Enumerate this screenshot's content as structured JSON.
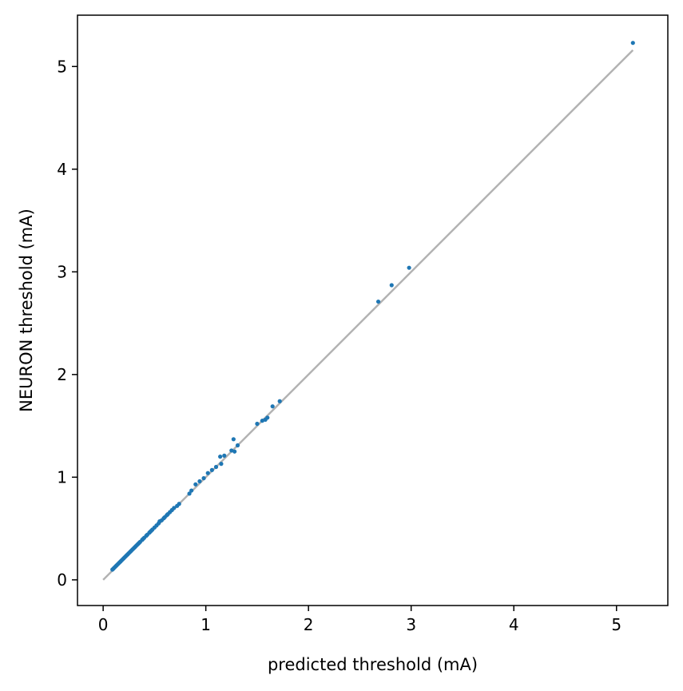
{
  "chart_data": {
    "type": "scatter",
    "title": "",
    "xlabel": "predicted threshold (mA)",
    "ylabel": "NEURON threshold (mA)",
    "xlim": [
      -0.25,
      5.5
    ],
    "ylim": [
      -0.25,
      5.5
    ],
    "xticks": [
      0,
      1,
      2,
      3,
      4,
      5
    ],
    "yticks": [
      0,
      1,
      2,
      3,
      4,
      5
    ],
    "xtick_labels": [
      "0",
      "1",
      "2",
      "3",
      "4",
      "5"
    ],
    "ytick_labels": [
      "0",
      "1",
      "2",
      "3",
      "4",
      "5"
    ],
    "grid": false,
    "legend": false,
    "reference_line": {
      "x": [
        0,
        5.16
      ],
      "y": [
        0,
        5.16
      ],
      "color": "#b3b3b3"
    },
    "point_color": "#1f77b4",
    "series": [
      {
        "x": [
          0.09,
          0.1,
          0.11,
          0.12,
          0.13,
          0.14,
          0.15,
          0.16,
          0.17,
          0.18,
          0.19,
          0.2,
          0.21,
          0.22,
          0.23,
          0.24,
          0.25,
          0.26,
          0.27,
          0.28,
          0.29,
          0.3,
          0.31,
          0.32,
          0.33,
          0.34,
          0.35,
          0.36,
          0.38,
          0.39,
          0.4,
          0.42,
          0.43,
          0.45,
          0.46,
          0.47,
          0.48,
          0.5,
          0.52,
          0.54,
          0.55,
          0.57,
          0.59,
          0.6,
          0.62,
          0.63,
          0.65,
          0.67,
          0.69,
          0.72,
          0.74,
          0.84,
          0.86,
          0.9,
          0.94,
          0.98,
          1.02,
          1.06,
          1.1,
          1.14,
          1.15,
          1.18,
          1.25,
          1.27,
          1.28,
          1.31,
          1.5,
          1.55,
          1.58,
          1.6,
          1.65,
          1.72,
          2.68,
          2.81,
          2.98,
          5.16
        ],
        "y": [
          0.1,
          0.11,
          0.12,
          0.13,
          0.14,
          0.15,
          0.16,
          0.17,
          0.18,
          0.19,
          0.2,
          0.21,
          0.22,
          0.23,
          0.24,
          0.25,
          0.26,
          0.27,
          0.28,
          0.29,
          0.3,
          0.31,
          0.32,
          0.33,
          0.34,
          0.35,
          0.36,
          0.37,
          0.39,
          0.4,
          0.41,
          0.43,
          0.44,
          0.46,
          0.47,
          0.48,
          0.49,
          0.51,
          0.53,
          0.55,
          0.57,
          0.58,
          0.6,
          0.61,
          0.63,
          0.64,
          0.66,
          0.68,
          0.7,
          0.72,
          0.74,
          0.84,
          0.87,
          0.93,
          0.96,
          0.99,
          1.04,
          1.07,
          1.1,
          1.2,
          1.13,
          1.21,
          1.26,
          1.37,
          1.25,
          1.31,
          1.52,
          1.55,
          1.56,
          1.58,
          1.69,
          1.74,
          2.71,
          2.87,
          3.04,
          5.23
        ]
      }
    ]
  }
}
